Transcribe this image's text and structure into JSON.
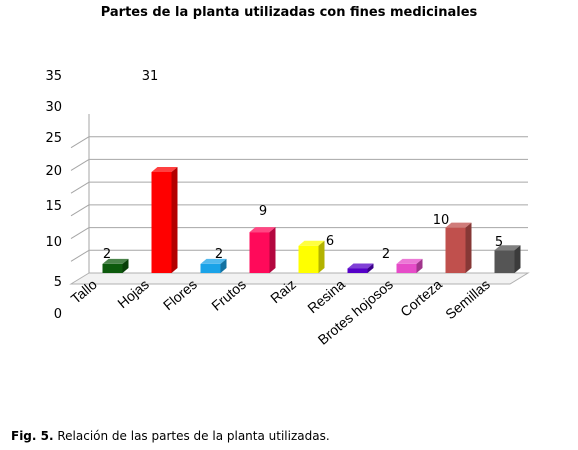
{
  "chart_data": {
    "type": "bar",
    "title": "Partes de la planta utilizadas con fines medicinales",
    "categories": [
      "Tallo",
      "Hojas",
      "Flores",
      "Frutos",
      "Raiz",
      "Resina",
      "Brotes hojosos",
      "Corteza",
      "Semillas"
    ],
    "values": [
      2,
      31,
      2,
      9,
      6,
      1,
      2,
      10,
      5
    ],
    "data_labels": [
      "2",
      "31",
      "2",
      "9",
      "6",
      "",
      "2",
      "10",
      "5"
    ],
    "bar_colors": [
      "#0d5a0d",
      "#ff0000",
      "#1aa3e8",
      "#ff0a5a",
      "#ffff00",
      "#5500c8",
      "#e64cc8",
      "#c0504d",
      "#555555"
    ],
    "yticks": [
      "0",
      "5",
      "10",
      "15",
      "20",
      "25",
      "30",
      "35"
    ],
    "ylim": [
      0,
      35
    ],
    "grid": true,
    "legend": "none"
  },
  "caption": {
    "label": "Fig. 5.",
    "text": " Relación de las partes de la planta utilizadas."
  }
}
